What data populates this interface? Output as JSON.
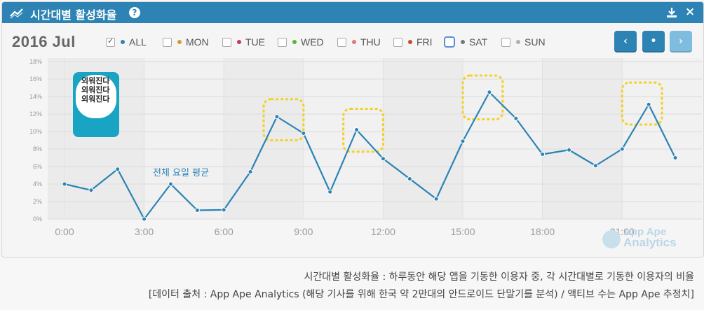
{
  "header": {
    "title": "시간대별 활성화율",
    "help_glyph": "?",
    "close_glyph": "×"
  },
  "toolbar": {
    "date": "2016 Jul",
    "filters": [
      {
        "label": "ALL",
        "checked": true,
        "color": "#2c83b4"
      },
      {
        "label": "MON",
        "checked": false,
        "color": "#d99a2b"
      },
      {
        "label": "TUE",
        "checked": false,
        "color": "#c2376d"
      },
      {
        "label": "WED",
        "checked": false,
        "color": "#59b536"
      },
      {
        "label": "THU",
        "checked": false,
        "color": "#e0787d"
      },
      {
        "label": "FRI",
        "checked": false,
        "color": "#cc4b25"
      },
      {
        "label": "SAT",
        "checked": false,
        "color": "#777777"
      },
      {
        "label": "SUN",
        "checked": false,
        "color": "#b0b0b0"
      }
    ],
    "nav_prev": "‹",
    "nav_current": "•",
    "nav_next": "›"
  },
  "app_icon_text": [
    "외워진다",
    "외워진다",
    "외워진다"
  ],
  "chart_data": {
    "type": "line",
    "series": [
      {
        "name": "",
        "color": "#2c83b4",
        "values": [
          {
            "x": "0:00",
            "y": 4.0
          },
          {
            "x": "1:00",
            "y": 3.3
          },
          {
            "x": "2:00",
            "y": 5.7
          },
          {
            "x": "3:00",
            "y": 0.0
          },
          {
            "x": "4:00",
            "y": 4.0
          },
          {
            "x": "5:00",
            "y": 1.0
          },
          {
            "x": "6:00",
            "y": 1.05
          },
          {
            "x": "7:00",
            "y": 5.4
          },
          {
            "x": "8:00",
            "y": 11.7
          },
          {
            "x": "9:00",
            "y": 9.8
          },
          {
            "x": "10:00",
            "y": 3.1
          },
          {
            "x": "11:00",
            "y": 10.2
          },
          {
            "x": "12:00",
            "y": 6.9
          },
          {
            "x": "13:00",
            "y": 4.6
          },
          {
            "x": "14:00",
            "y": 2.3
          },
          {
            "x": "15:00",
            "y": 8.9
          },
          {
            "x": "16:00",
            "y": 14.5
          },
          {
            "x": "17:00",
            "y": 11.5
          },
          {
            "x": "18:00",
            "y": 7.4
          },
          {
            "x": "19:00",
            "y": 7.9
          },
          {
            "x": "20:00",
            "y": 6.1
          },
          {
            "x": "21:00",
            "y": 8.0
          },
          {
            "x": "22:00",
            "y": 13.1
          },
          {
            "x": "23:00",
            "y": 7.0
          }
        ]
      }
    ],
    "xticks": [
      "0:00",
      "3:00",
      "6:00",
      "9:00",
      "12:00",
      "15:00",
      "18:00",
      "21:00"
    ],
    "yticks": [
      "0%",
      "2%",
      "4%",
      "6%",
      "8%",
      "10%",
      "12%",
      "14%",
      "16%",
      "18%"
    ],
    "ylim": [
      0,
      18
    ],
    "grid": true,
    "annotation": "전체 요일 평균",
    "highlights": [
      {
        "x_from": "7:30",
        "x_to": "9:00",
        "y_from": 9.0,
        "y_to": 13.7
      },
      {
        "x_from": "10:30",
        "x_to": "12:00",
        "y_from": 7.7,
        "y_to": 12.6
      },
      {
        "x_from": "15:00",
        "x_to": "16:30",
        "y_from": 11.4,
        "y_to": 16.4
      },
      {
        "x_from": "21:00",
        "x_to": "22:30",
        "y_from": 10.8,
        "y_to": 15.6
      }
    ]
  },
  "watermark": {
    "line1": "App Ape",
    "line2": "Analytics"
  },
  "captions": [
    "시간대별 활성화율 : 하루동안 해당 앱을 기동한 이용자 중, 각 시간대별로 기동한 이용자의 비율",
    "[데이터 출처 : App Ape Analytics (해당 기사를 위해 한국 약 2만대의 안드로이드 단말기를 분석) / 액티브 수는 App Ape 추정치]"
  ]
}
